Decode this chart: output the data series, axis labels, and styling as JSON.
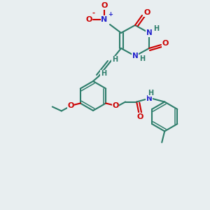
{
  "bg_color": "#e8eef0",
  "bond_color": "#2d7d6b",
  "atom_colors": {
    "O": "#cc0000",
    "N": "#2222cc",
    "H": "#2d7d6b",
    "C": "#2d7d6b"
  }
}
